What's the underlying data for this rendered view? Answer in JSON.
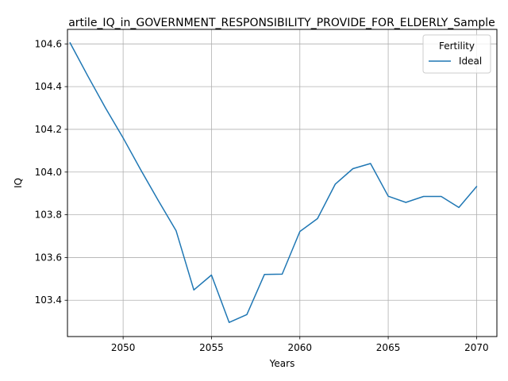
{
  "chart_data": {
    "type": "line",
    "title": "artile_IQ_in_GOVERNMENT_RESPONSIBILITY_PROVIDE_FOR_ELDERLY_Sample",
    "xlabel": "Years",
    "ylabel": "IQ",
    "xlim": [
      2046.85,
      2071.15
    ],
    "ylim": [
      103.23,
      104.668
    ],
    "xticks": [
      2050,
      2055,
      2060,
      2065,
      2070
    ],
    "yticks": [
      103.4,
      103.6,
      103.8,
      104.0,
      104.2,
      104.4,
      104.6
    ],
    "ytick_labels": [
      "103.4",
      "103.6",
      "103.8",
      "104.0",
      "104.2",
      "104.4",
      "104.6"
    ],
    "grid": true,
    "legend": {
      "title": "Fertility",
      "placement": "top-right"
    },
    "series": [
      {
        "name": "Ideal",
        "color": "#1f77b4",
        "x": [
          2047,
          2048,
          2049,
          2050,
          2051,
          2052,
          2053,
          2054,
          2055,
          2056,
          2057,
          2058,
          2059,
          2060,
          2061,
          2062,
          2063,
          2064,
          2065,
          2066,
          2067,
          2068,
          2069,
          2070
        ],
        "y": [
          104.605,
          104.45,
          104.3,
          104.16,
          104.01,
          103.865,
          103.725,
          103.448,
          103.518,
          103.296,
          103.333,
          103.521,
          103.522,
          103.722,
          103.782,
          103.943,
          104.016,
          104.04,
          103.887,
          103.858,
          103.886,
          103.886,
          103.834,
          103.932
        ]
      }
    ]
  }
}
